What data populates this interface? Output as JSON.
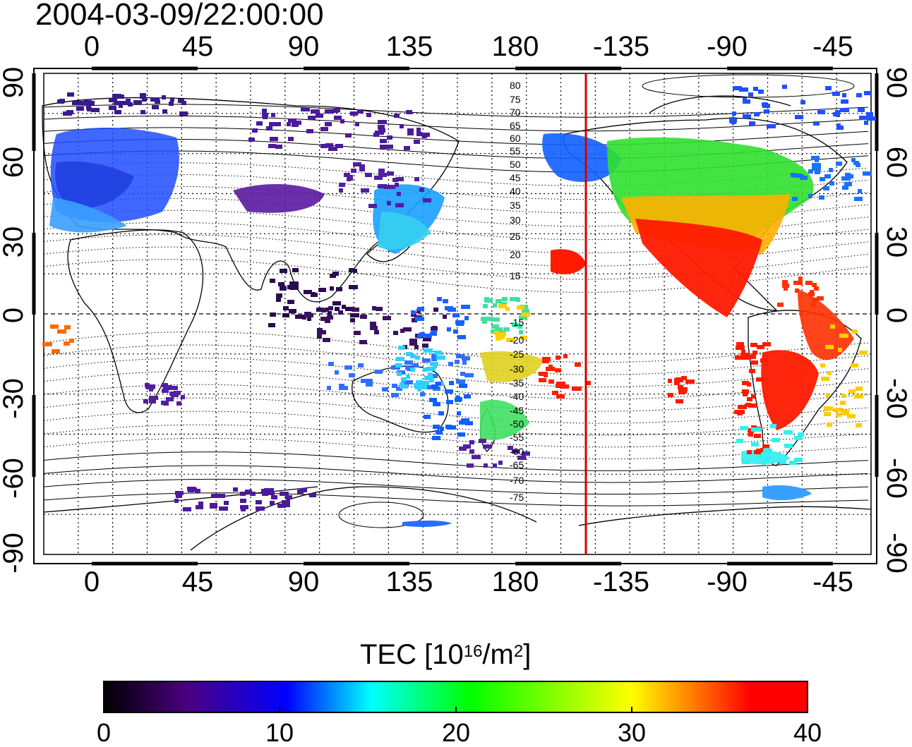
{
  "title": "2004-03-09/22:00:00",
  "map": {
    "lon_ticks_top": [
      "0",
      "45",
      "90",
      "135",
      "180",
      "-135",
      "-90",
      "-45"
    ],
    "lon_ticks_bottom": [
      "0",
      "45",
      "90",
      "135",
      "180",
      "-135",
      "-90",
      "-45"
    ],
    "lat_ticks_left": [
      "90",
      "60",
      "30",
      "0",
      "-30",
      "-60",
      "-90"
    ],
    "lat_ticks_right": [
      "90",
      "60",
      "30",
      "0",
      "-30",
      "-60",
      "-90"
    ],
    "contour_labels": [
      "80",
      "75",
      "70",
      "65",
      "60",
      "55",
      "50",
      "45",
      "40",
      "35",
      "30",
      "25",
      "20",
      "15",
      "-15",
      "-20",
      "-25",
      "-30",
      "-35",
      "-40",
      "-45",
      "-50",
      "-55",
      "-60",
      "-65",
      "-70",
      "-75"
    ],
    "terminator_line_color": "#d40000",
    "grid": "dotted"
  },
  "colorbar": {
    "title": "TEC  [10",
    "title_exp": "16",
    "title_mid": "/m",
    "title_exp2": "2",
    "title_end": "]",
    "ticks": [
      "0",
      "10",
      "20",
      "30",
      "40"
    ],
    "range": [
      0,
      40
    ],
    "colors": [
      "#000000",
      "#4b0082",
      "#0000ff",
      "#00ffff",
      "#00ff00",
      "#ffff00",
      "#ff0000"
    ]
  }
}
